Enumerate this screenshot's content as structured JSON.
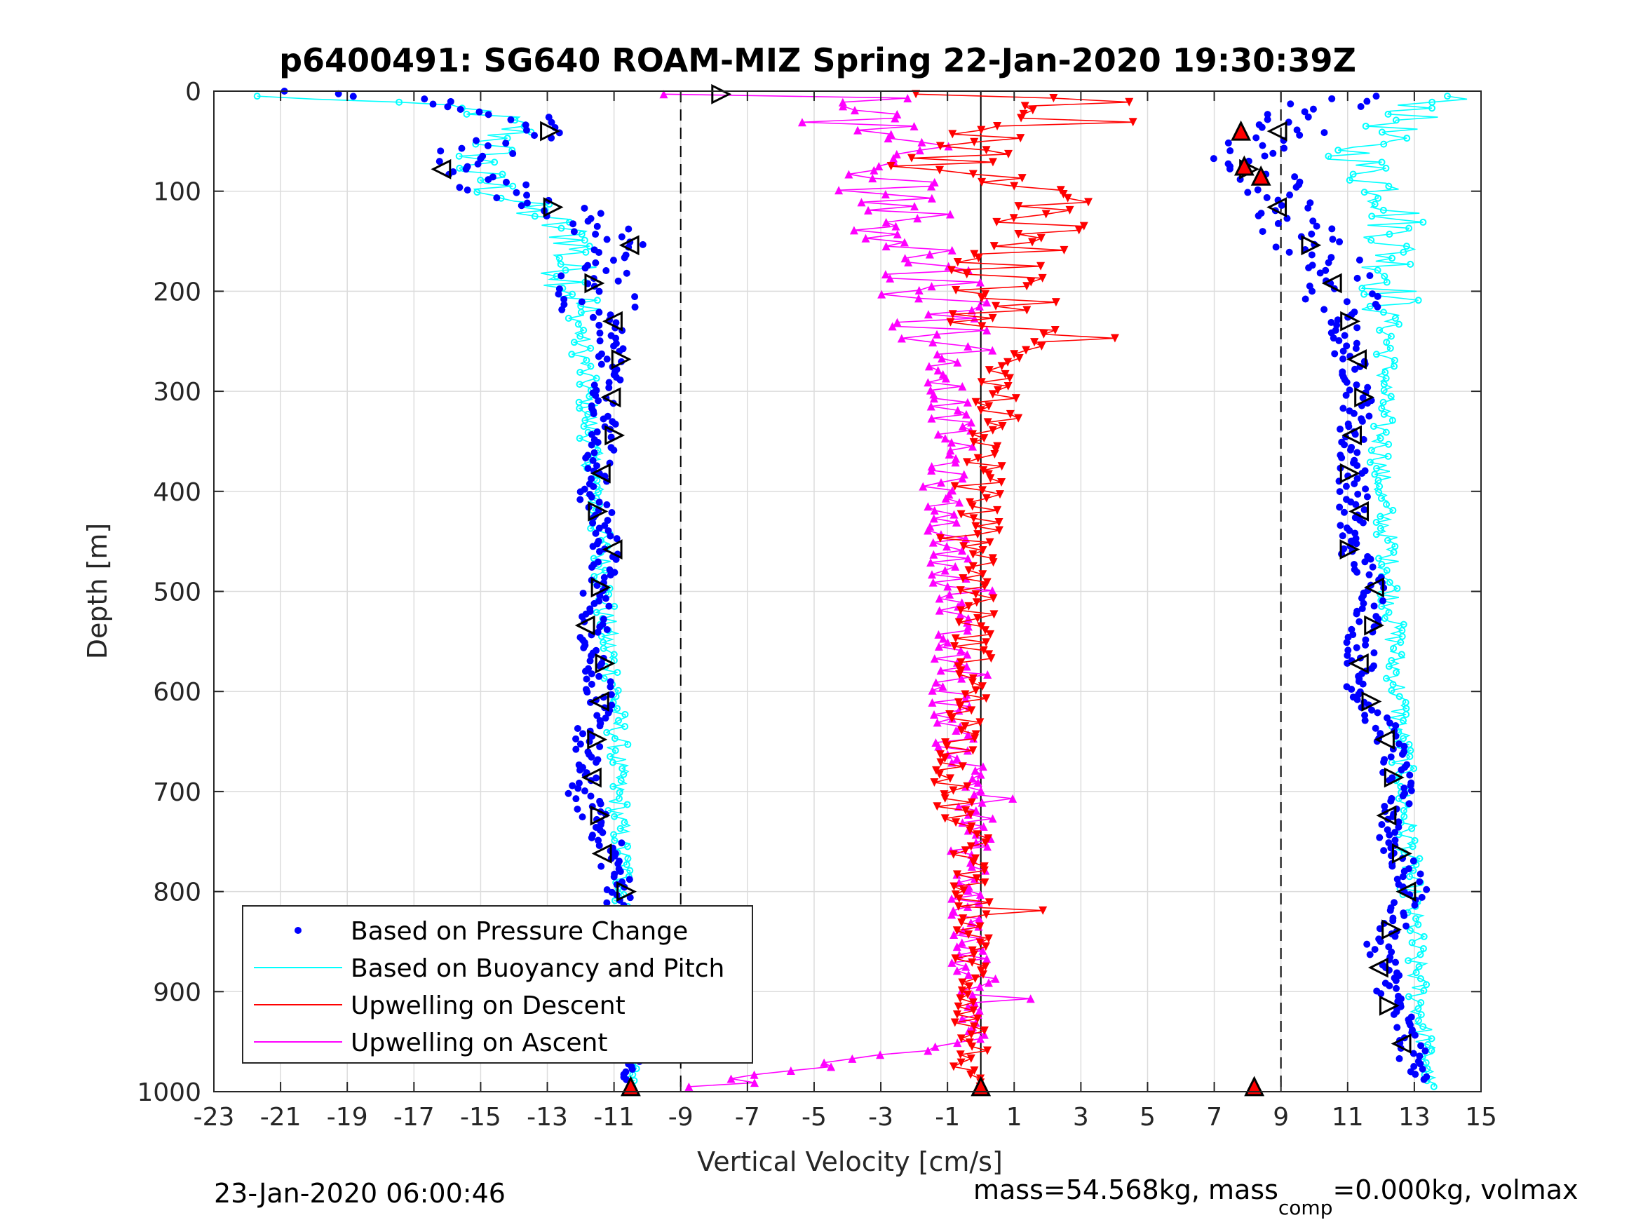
{
  "chart_data": {
    "type": "scatter",
    "title": "p6400491: SG640 ROAM-MIZ Spring 22-Jan-2020 19:30:39Z",
    "xlabel": "Vertical Velocity [cm/s]",
    "ylabel": "Depth [m]",
    "xlim": [
      -23,
      15
    ],
    "ylim": [
      0,
      1000
    ],
    "y_reversed": true,
    "xticks": [
      "-23",
      "-21",
      "-19",
      "-17",
      "-15",
      "-13",
      "-11",
      "-9",
      "-7",
      "-5",
      "-3",
      "-1",
      "1",
      "3",
      "5",
      "7",
      "9",
      "11",
      "13",
      "15"
    ],
    "yticks": [
      "0",
      "100",
      "200",
      "300",
      "400",
      "500",
      "600",
      "700",
      "800",
      "900",
      "1000"
    ],
    "grid": true,
    "legend_position": "bottom-left",
    "reference_lines": [
      {
        "x": -9,
        "style": "dashed"
      },
      {
        "x": 0,
        "style": "solid"
      },
      {
        "x": 9,
        "style": "dashed"
      }
    ],
    "series": [
      {
        "name": "Based on Pressure Change",
        "color": "#0000ff",
        "marker": "dot",
        "segments": [
          {
            "phase": "descent",
            "depth": [
              0,
              10,
              20,
              30,
              40,
              50,
              60,
              70,
              80,
              90,
              100,
              110,
              120,
              130,
              140,
              150,
              160,
              170,
              180,
              190,
              200,
              250,
              300,
              350,
              400,
              450,
              500,
              550,
              600,
              650,
              700,
              750,
              800,
              850,
              900,
              950,
              990
            ],
            "velocity": [
              -21,
              -17,
              -14,
              -13.5,
              -13,
              -14.5,
              -15,
              -16,
              -16.5,
              -15,
              -14,
              -13,
              -12.5,
              -11.5,
              -11,
              -10.5,
              -10.8,
              -11,
              -11.5,
              -12,
              -11.5,
              -11,
              -11.2,
              -11.3,
              -11.7,
              -11.2,
              -11.5,
              -11.6,
              -11.4,
              -11.8,
              -12,
              -11.2,
              -10.8,
              -10.8,
              -10.7,
              -10.6,
              -10.5
            ]
          },
          {
            "phase": "ascent",
            "depth": [
              990,
              950,
              900,
              850,
              800,
              750,
              700,
              650,
              600,
              550,
              500,
              450,
              400,
              350,
              300,
              250,
              200,
              150,
              120,
              100,
              80,
              60,
              40,
              20,
              5
            ],
            "velocity": [
              13.2,
              12.8,
              12.3,
              12.0,
              13.0,
              12.3,
              12.5,
              12.3,
              11.4,
              11.4,
              11.9,
              11.0,
              11.2,
              11.1,
              11.4,
              10.9,
              10.8,
              9.8,
              9.2,
              8.5,
              8.2,
              8.0,
              9.2,
              10,
              11
            ]
          }
        ]
      },
      {
        "name": "Based on Buoyancy and Pitch",
        "color": "#00ffff",
        "marker": "circle-line",
        "segments": [
          {
            "phase": "descent",
            "depth": [
              5,
              10,
              20,
              30,
              40,
              50,
              60,
              70,
              80,
              90,
              100,
              110,
              120,
              130,
              140,
              150,
              160,
              170,
              180,
              190,
              200,
              250,
              300,
              350,
              400,
              450,
              500,
              550,
              600,
              650,
              700,
              750,
              800,
              850,
              900,
              950,
              995
            ],
            "velocity": [
              -22,
              -18,
              -15,
              -14.3,
              -14,
              -14.5,
              -14.8,
              -15,
              -15.3,
              -14.8,
              -14.5,
              -14,
              -13.5,
              -13,
              -12.5,
              -12,
              -12.2,
              -12.5,
              -12.3,
              -12.2,
              -12.1,
              -12,
              -11.8,
              -11.7,
              -11.6,
              -11.4,
              -11.3,
              -11.2,
              -11.0,
              -10.9,
              -10.9,
              -10.8,
              -10.7,
              -10.6,
              -10.6,
              -10.5,
              -10.5
            ]
          },
          {
            "phase": "ascent",
            "depth": [
              995,
              950,
              900,
              850,
              800,
              750,
              700,
              650,
              600,
              550,
              500,
              450,
              400,
              350,
              300,
              250,
              200,
              150,
              120,
              100,
              80,
              60,
              40,
              20,
              5
            ],
            "velocity": [
              13.5,
              13.3,
              13.1,
              13.0,
              12.9,
              12.8,
              12.7,
              12.6,
              12.5,
              12.4,
              12.3,
              12.2,
              12.0,
              12.0,
              12.1,
              12.2,
              12.3,
              12.4,
              12.5,
              12.3,
              11.5,
              11.2,
              12.2,
              13.0,
              14.0
            ]
          }
        ]
      },
      {
        "name": "Upwelling on Descent",
        "color": "#ff0000",
        "marker": "triangle-down-line",
        "depth": [
          5,
          20,
          30,
          40,
          50,
          60,
          70,
          80,
          90,
          100,
          120,
          140,
          160,
          180,
          200,
          250,
          300,
          350,
          400,
          450,
          500,
          550,
          600,
          650,
          700,
          750,
          800,
          850,
          900,
          950,
          1000
        ],
        "velocity": [
          4,
          2,
          3,
          1,
          0.5,
          -0.5,
          -0.8,
          -1,
          0.2,
          1.5,
          2.5,
          2,
          1,
          0.5,
          0.5,
          0.6,
          0.5,
          0.2,
          0,
          0,
          -0.1,
          -0.2,
          -0.3,
          -0.5,
          -1.0,
          -0.3,
          -0.2,
          -0.3,
          -0.2,
          -0.3,
          -0.3
        ]
      },
      {
        "name": "Upwelling on Ascent",
        "color": "#ff00ff",
        "marker": "triangle-up-line",
        "depth": [
          5,
          20,
          30,
          40,
          50,
          60,
          70,
          80,
          90,
          100,
          120,
          140,
          160,
          180,
          200,
          250,
          300,
          350,
          400,
          450,
          500,
          550,
          600,
          650,
          700,
          750,
          800,
          850,
          900,
          950,
          995
        ],
        "velocity": [
          -2,
          -3,
          -4,
          -3.5,
          -3,
          -2.5,
          -3,
          -3.5,
          -2.5,
          -2,
          -2.5,
          -2,
          -1.8,
          -1.5,
          -1.2,
          -1.0,
          -1.0,
          -0.8,
          -1.2,
          -1.0,
          -0.8,
          -1.0,
          -0.9,
          -0.8,
          0,
          -0.3,
          -0.4,
          -0.5,
          0,
          -0.2,
          -9
        ]
      }
    ],
    "markers": {
      "open_triangles_note": "black open triangle markers at sampled points along both descent and ascent profiles",
      "red_triangles": [
        {
          "x": 7.8,
          "y": 40
        },
        {
          "x": 7.9,
          "y": 75
        },
        {
          "x": 8.4,
          "y": 85
        },
        {
          "x": 8.2,
          "y": 995
        },
        {
          "x": -10.5,
          "y": 995
        },
        {
          "x": 0,
          "y": 995
        }
      ]
    },
    "legend": [
      "Based on Pressure Change",
      "Based on Buoyancy and Pitch",
      "Upwelling on Descent",
      "Upwelling on Ascent"
    ],
    "footer_left": "23-Jan-2020 06:00:46",
    "footer_right_main": "mass=54.568kg, mass",
    "footer_right_sub": "comp",
    "footer_right_tail": "=0.000kg, volmax"
  }
}
